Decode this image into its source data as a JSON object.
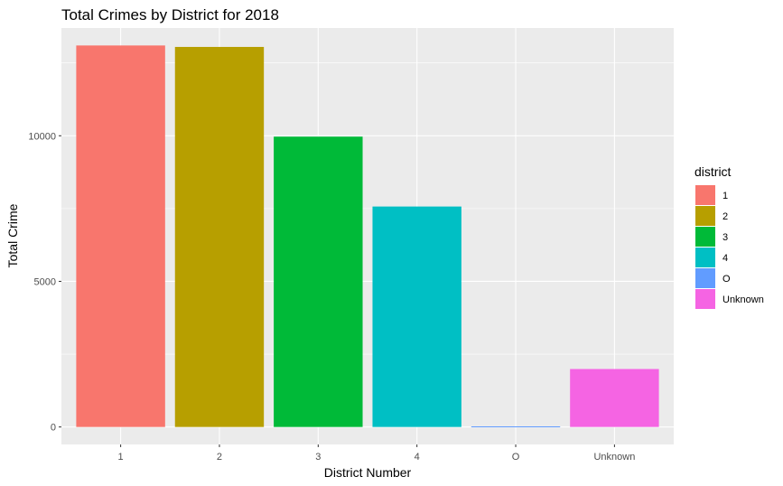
{
  "chart_data": {
    "type": "bar",
    "title": "Total Crimes by District for 2018",
    "xlabel": "District Number",
    "ylabel": "Total Crime",
    "categories": [
      "1",
      "2",
      "3",
      "4",
      "O",
      "Unknown"
    ],
    "values": [
      13100,
      13050,
      9970,
      7570,
      20,
      1990
    ],
    "colors": [
      "#F8766D",
      "#B79F00",
      "#00BA38",
      "#00BFC4",
      "#619CFF",
      "#F564E3"
    ],
    "ylim": [
      -600,
      13700
    ],
    "yticks": [
      0,
      5000,
      10000
    ],
    "ytick_labels": [
      "0",
      "5000",
      "10000"
    ],
    "grid": true,
    "panel_background": "#EBEBEB",
    "legend": {
      "title": "district",
      "position": "right",
      "labels": [
        "1",
        "2",
        "3",
        "4",
        "O",
        "Unknown"
      ]
    }
  }
}
